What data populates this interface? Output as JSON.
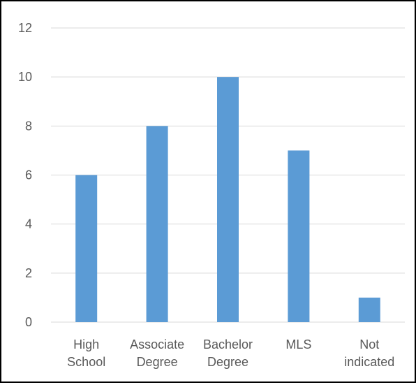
{
  "chart_data": {
    "type": "bar",
    "title": "",
    "xlabel": "",
    "ylabel": "",
    "categories": [
      [
        "High",
        "School"
      ],
      [
        "Associate",
        "Degree"
      ],
      [
        "Bachelor",
        "Degree"
      ],
      [
        "MLS"
      ],
      [
        "Not",
        "indicated"
      ]
    ],
    "values": [
      6,
      8,
      10,
      7,
      1
    ],
    "ylim": [
      0,
      12
    ],
    "yticks": [
      "0",
      "2",
      "4",
      "6",
      "8",
      "10",
      "12"
    ],
    "grid": true,
    "legend": "none",
    "colors": {
      "bar": "#5B9BD5",
      "grid": "#D9D9D9",
      "axis": "#D9D9D9",
      "text": "#595959"
    }
  }
}
